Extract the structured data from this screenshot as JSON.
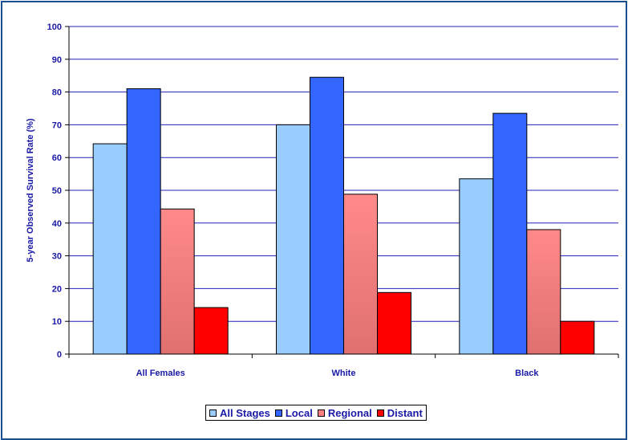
{
  "chart_data": {
    "type": "bar",
    "title": "",
    "xlabel": "",
    "ylabel": "5-year Observed Survival Rate (%)",
    "ylim": [
      0,
      100
    ],
    "yticks": [
      0,
      10,
      20,
      30,
      40,
      50,
      60,
      70,
      80,
      90,
      100
    ],
    "grid": true,
    "legend_position": "bottom",
    "categories": [
      "All Females",
      "White",
      "Black"
    ],
    "series": [
      {
        "name": "All Stages",
        "values": [
          64.2,
          70.0,
          53.5
        ],
        "color": "#99ccff"
      },
      {
        "name": "Local",
        "values": [
          81.0,
          84.5,
          73.5
        ],
        "color": "#3366ff"
      },
      {
        "name": "Regional",
        "values": [
          44.3,
          48.8,
          38.0
        ],
        "color": "#ff8080"
      },
      {
        "name": "Distant",
        "values": [
          14.2,
          18.8,
          10.0
        ],
        "color": "#ff0000"
      }
    ],
    "colors": {
      "gridline": "#2222bb",
      "frame_border": "#1a4f8f",
      "text": "#1a1aa6"
    }
  }
}
